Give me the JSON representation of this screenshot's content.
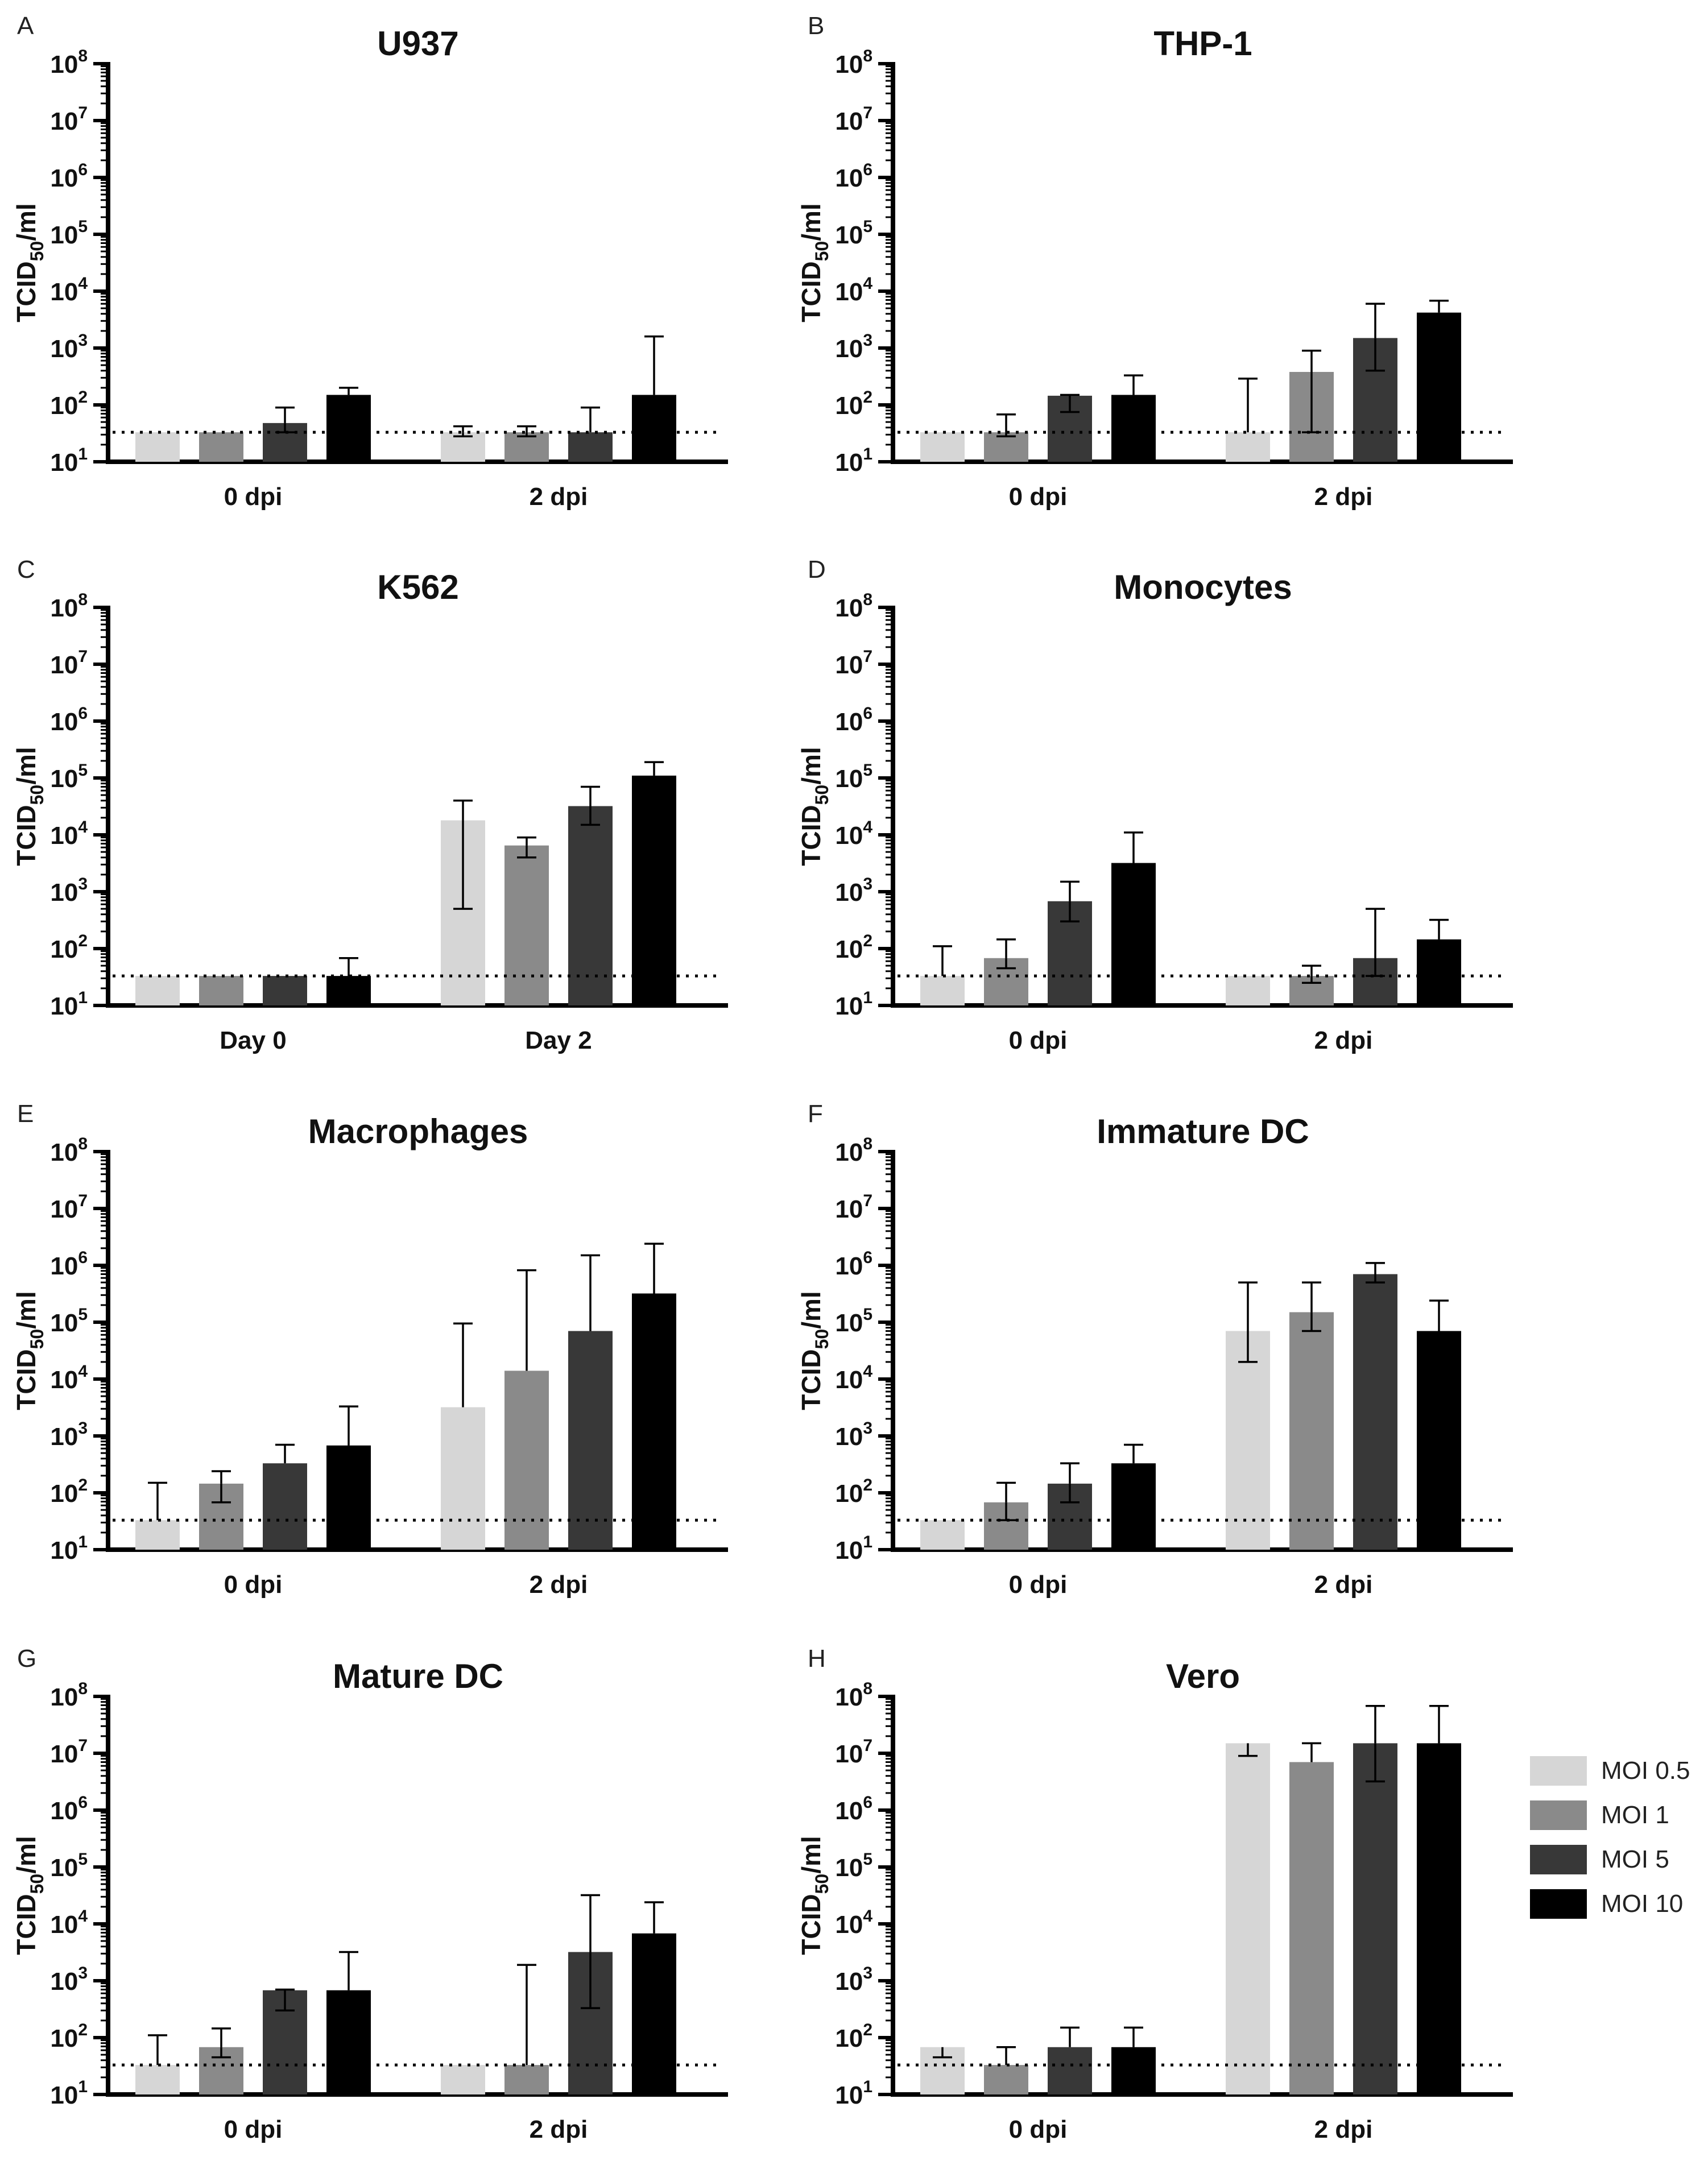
{
  "figure": {
    "ylabel_main": "TCID",
    "ylabel_sub": "50",
    "ylabel_tail": "/ml",
    "yticks": [
      {
        "base": "10",
        "exp": "1"
      },
      {
        "base": "10",
        "exp": "2"
      },
      {
        "base": "10",
        "exp": "3"
      },
      {
        "base": "10",
        "exp": "4"
      },
      {
        "base": "10",
        "exp": "5"
      },
      {
        "base": "10",
        "exp": "6"
      },
      {
        "base": "10",
        "exp": "7"
      },
      {
        "base": "10",
        "exp": "8"
      }
    ],
    "detection_limit": 33
  },
  "legend": {
    "items": [
      {
        "label": "MOI 0.5",
        "color": "#d6d6d6"
      },
      {
        "label": "MOI 1",
        "color": "#8a8a8a"
      },
      {
        "label": "MOI 5",
        "color": "#383838"
      },
      {
        "label": "MOI 10",
        "color": "#000000"
      }
    ]
  },
  "chart_data": [
    {
      "panel": "A",
      "title": "U937",
      "type": "bar",
      "yscale": "log",
      "ylim": [
        10,
        100000000
      ],
      "categories": [
        "0 dpi",
        "2 dpi"
      ],
      "series": [
        {
          "name": "MOI 0.5",
          "values": [
            33,
            33
          ],
          "err_high": [
            33,
            42
          ],
          "err_low": [
            33,
            28
          ]
        },
        {
          "name": "MOI 1",
          "values": [
            33,
            33
          ],
          "err_high": [
            33,
            42
          ],
          "err_low": [
            33,
            28
          ]
        },
        {
          "name": "MOI 5",
          "values": [
            48,
            33
          ],
          "err_high": [
            90,
            90
          ],
          "err_low": [
            33,
            33
          ]
        },
        {
          "name": "MOI 10",
          "values": [
            150,
            150
          ],
          "err_high": [
            200,
            1600
          ],
          "err_low": [
            150,
            150
          ]
        }
      ]
    },
    {
      "panel": "B",
      "title": "THP-1",
      "type": "bar",
      "yscale": "log",
      "ylim": [
        10,
        100000000
      ],
      "categories": [
        "0 dpi",
        "2 dpi"
      ],
      "series": [
        {
          "name": "MOI 0.5",
          "values": [
            33,
            33
          ],
          "err_high": [
            33,
            290
          ],
          "err_low": [
            33,
            33
          ]
        },
        {
          "name": "MOI 1",
          "values": [
            33,
            380
          ],
          "err_high": [
            68,
            900
          ],
          "err_low": [
            28,
            33
          ]
        },
        {
          "name": "MOI 5",
          "values": [
            145,
            1500
          ],
          "err_high": [
            150,
            6000
          ],
          "err_low": [
            75,
            400
          ]
        },
        {
          "name": "MOI 10",
          "values": [
            150,
            4200
          ],
          "err_high": [
            330,
            6800
          ],
          "err_low": [
            70,
            4200
          ]
        }
      ]
    },
    {
      "panel": "C",
      "title": "K562",
      "type": "bar",
      "yscale": "log",
      "ylim": [
        10,
        100000000
      ],
      "categories": [
        "Day 0",
        "Day 2"
      ],
      "series": [
        {
          "name": "MOI 0.5",
          "values": [
            33,
            18000
          ],
          "err_high": [
            33,
            40000
          ],
          "err_low": [
            33,
            500
          ]
        },
        {
          "name": "MOI 1",
          "values": [
            33,
            6500
          ],
          "err_high": [
            33,
            9000
          ],
          "err_low": [
            33,
            4000
          ]
        },
        {
          "name": "MOI 5",
          "values": [
            33,
            32000
          ],
          "err_high": [
            33,
            70000
          ],
          "err_low": [
            33,
            15000
          ]
        },
        {
          "name": "MOI 10",
          "values": [
            33,
            110000
          ],
          "err_high": [
            68,
            190000
          ],
          "err_low": [
            22,
            70000
          ]
        }
      ]
    },
    {
      "panel": "D",
      "title": "Monocytes",
      "type": "bar",
      "yscale": "log",
      "ylim": [
        10,
        100000000
      ],
      "categories": [
        "0 dpi",
        "2 dpi"
      ],
      "series": [
        {
          "name": "MOI 0.5",
          "values": [
            33,
            33
          ],
          "err_high": [
            110,
            33
          ],
          "err_low": [
            33,
            33
          ]
        },
        {
          "name": "MOI 1",
          "values": [
            68,
            33
          ],
          "err_high": [
            145,
            50
          ],
          "err_low": [
            45,
            25
          ]
        },
        {
          "name": "MOI 5",
          "values": [
            680,
            68
          ],
          "err_high": [
            1500,
            500
          ],
          "err_low": [
            300,
            33
          ]
        },
        {
          "name": "MOI 10",
          "values": [
            3200,
            145
          ],
          "err_high": [
            11000,
            320
          ],
          "err_low": [
            1000,
            68
          ]
        }
      ]
    },
    {
      "panel": "E",
      "title": "Macrophages",
      "type": "bar",
      "yscale": "log",
      "ylim": [
        10,
        100000000
      ],
      "categories": [
        "0 dpi",
        "2 dpi"
      ],
      "series": [
        {
          "name": "MOI 0.5",
          "values": [
            33,
            3200
          ],
          "err_high": [
            150,
            95000
          ],
          "err_low": [
            33,
            3200
          ]
        },
        {
          "name": "MOI 1",
          "values": [
            145,
            14000
          ],
          "err_high": [
            240,
            820000
          ],
          "err_low": [
            68,
            14000
          ]
        },
        {
          "name": "MOI 5",
          "values": [
            330,
            70000
          ],
          "err_high": [
            700,
            1500000
          ],
          "err_low": [
            330,
            70000
          ]
        },
        {
          "name": "MOI 10",
          "values": [
            680,
            320000
          ],
          "err_high": [
            3300,
            2400000
          ],
          "err_low": [
            150,
            70000
          ]
        }
      ]
    },
    {
      "panel": "F",
      "title": "Immature DC",
      "type": "bar",
      "yscale": "log",
      "ylim": [
        10,
        100000000
      ],
      "categories": [
        "0 dpi",
        "2 dpi"
      ],
      "series": [
        {
          "name": "MOI 0.5",
          "values": [
            33,
            70000
          ],
          "err_high": [
            33,
            500000
          ],
          "err_low": [
            33,
            20000
          ]
        },
        {
          "name": "MOI 1",
          "values": [
            68,
            150000
          ],
          "err_high": [
            150,
            500000
          ],
          "err_low": [
            33,
            70000
          ]
        },
        {
          "name": "MOI 5",
          "values": [
            145,
            700000
          ],
          "err_high": [
            330,
            1100000
          ],
          "err_low": [
            68,
            500000
          ]
        },
        {
          "name": "MOI 10",
          "values": [
            330,
            70000
          ],
          "err_high": [
            700,
            240000
          ],
          "err_low": [
            330,
            70000
          ]
        }
      ]
    },
    {
      "panel": "G",
      "title": "Mature DC",
      "type": "bar",
      "yscale": "log",
      "ylim": [
        10,
        100000000
      ],
      "categories": [
        "0 dpi",
        "2 dpi"
      ],
      "series": [
        {
          "name": "MOI 0.5",
          "values": [
            33,
            33
          ],
          "err_high": [
            110,
            33
          ],
          "err_low": [
            33,
            33
          ]
        },
        {
          "name": "MOI 1",
          "values": [
            68,
            33
          ],
          "err_high": [
            145,
            1900
          ],
          "err_low": [
            45,
            33
          ]
        },
        {
          "name": "MOI 5",
          "values": [
            680,
            3200
          ],
          "err_high": [
            700,
            32000
          ],
          "err_low": [
            300,
            330
          ]
        },
        {
          "name": "MOI 10",
          "values": [
            680,
            6800
          ],
          "err_high": [
            3200,
            24000
          ],
          "err_low": [
            680,
            6800
          ]
        }
      ]
    },
    {
      "panel": "H",
      "title": "Vero",
      "type": "bar",
      "yscale": "log",
      "ylim": [
        10,
        100000000
      ],
      "categories": [
        "0 dpi",
        "2 dpi"
      ],
      "series": [
        {
          "name": "MOI 0.5",
          "values": [
            68,
            15000000
          ],
          "err_high": [
            68,
            15000000
          ],
          "err_low": [
            45,
            9000000
          ]
        },
        {
          "name": "MOI 1",
          "values": [
            33,
            7000000
          ],
          "err_high": [
            68,
            15000000
          ],
          "err_low": [
            33,
            7000000
          ]
        },
        {
          "name": "MOI 5",
          "values": [
            68,
            15000000
          ],
          "err_high": [
            150,
            68000000
          ],
          "err_low": [
            68,
            3200000
          ]
        },
        {
          "name": "MOI 10",
          "values": [
            68,
            15000000
          ],
          "err_high": [
            150,
            68000000
          ],
          "err_low": [
            68,
            3200000
          ]
        }
      ]
    }
  ]
}
